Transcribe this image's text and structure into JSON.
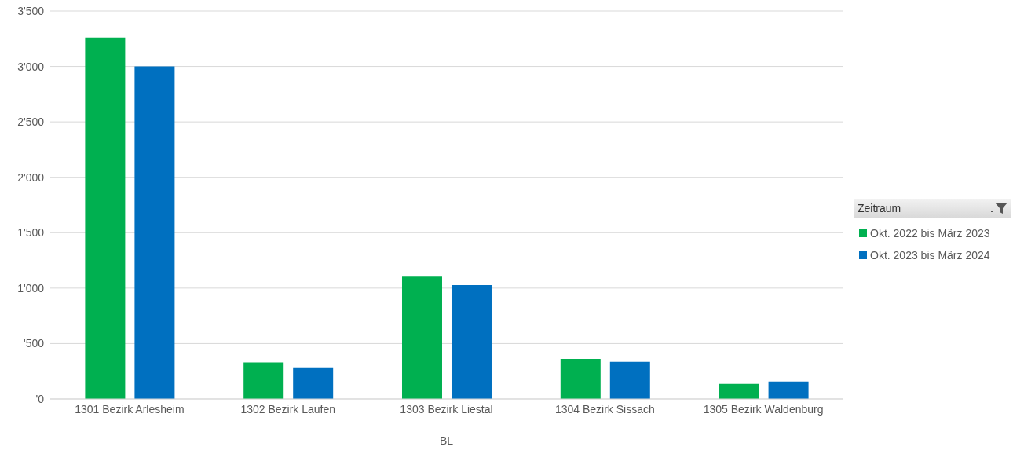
{
  "chart_data": {
    "type": "bar",
    "xlabel": "BL",
    "legend_title": "Zeitraum",
    "categories": [
      "1301 Bezirk Arlesheim",
      "1302 Bezirk Laufen",
      "1303 Bezirk Liestal",
      "1304 Bezirk Sissach",
      "1305 Bezirk Waldenburg"
    ],
    "series": [
      {
        "name": "Okt. 2022 bis März 2023",
        "color": "#00b050",
        "values": [
          3260,
          330,
          1104,
          362,
          136
        ]
      },
      {
        "name": "Okt. 2023 bis März 2024",
        "color": "#0070c0",
        "values": [
          3000,
          285,
          1027,
          335,
          158
        ]
      }
    ],
    "ylim": [
      0,
      3500
    ],
    "yticks": [
      {
        "value": 0,
        "label": "'0"
      },
      {
        "value": 500,
        "label": "'500"
      },
      {
        "value": 1000,
        "label": "1'000"
      },
      {
        "value": 1500,
        "label": "1'500"
      },
      {
        "value": 2000,
        "label": "2'000"
      },
      {
        "value": 2500,
        "label": "2'500"
      },
      {
        "value": 3000,
        "label": "3'000"
      },
      {
        "value": 3500,
        "label": "3'500"
      }
    ],
    "grid": "y",
    "legend": "right"
  }
}
